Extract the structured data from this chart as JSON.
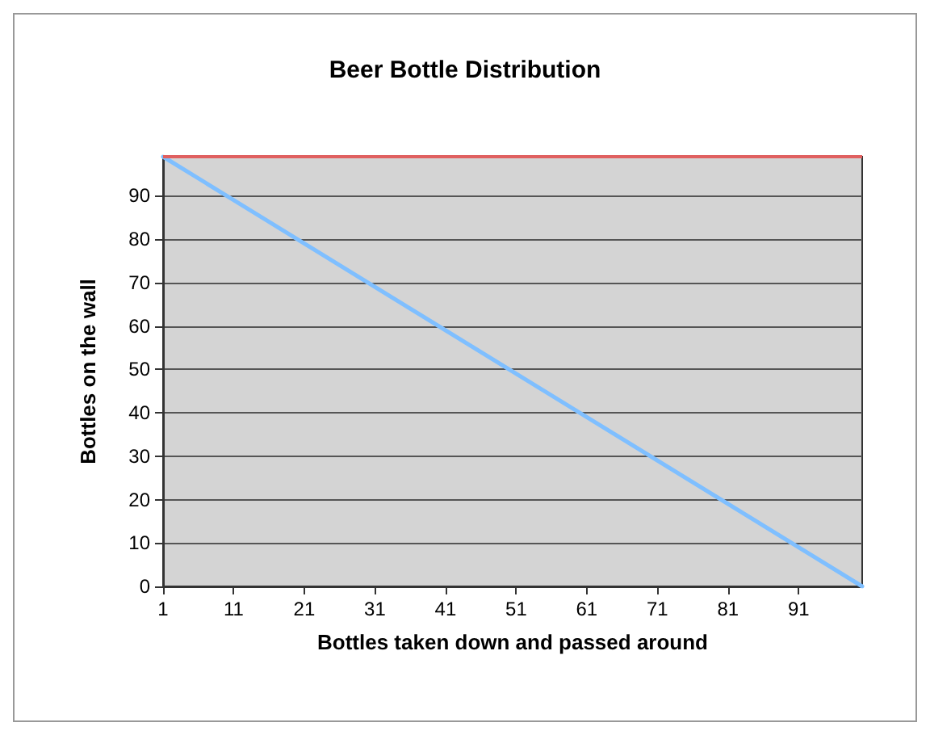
{
  "chart_data": {
    "type": "line",
    "title": "Beer Bottle Distribution",
    "xlabel": "Bottles taken down and passed around",
    "ylabel": "Bottles on the wall",
    "x": [
      1,
      100
    ],
    "series": [
      {
        "color": "#7fbfff",
        "values": [
          99,
          0
        ]
      }
    ],
    "xlim": [
      1,
      100
    ],
    "xticks": [
      1,
      11,
      21,
      31,
      41,
      51,
      61,
      71,
      81,
      91
    ],
    "ylim": [
      0,
      99
    ],
    "yticks": [
      0,
      10,
      20,
      30,
      40,
      50,
      60,
      70,
      80,
      90
    ],
    "ref_lines": [
      {
        "axis": "y",
        "value": 99,
        "color": "#e06060"
      }
    ],
    "grid": "y",
    "marker": "none",
    "line_style": "solid"
  }
}
